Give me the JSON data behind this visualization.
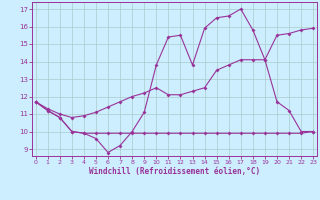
{
  "bg_color": "#cceeff",
  "line_color": "#993399",
  "grid_color": "#aacccc",
  "xlabel": "Windchill (Refroidissement éolien,°C)",
  "xlabel_color": "#993399",
  "xticks": [
    0,
    1,
    2,
    3,
    4,
    5,
    6,
    7,
    8,
    9,
    10,
    11,
    12,
    13,
    14,
    15,
    16,
    17,
    18,
    19,
    20,
    21,
    22,
    23
  ],
  "yticks": [
    9,
    10,
    11,
    12,
    13,
    14,
    15,
    16,
    17
  ],
  "xlim": [
    -0.3,
    23.3
  ],
  "ylim": [
    8.6,
    17.4
  ],
  "series1_x": [
    0,
    1,
    2,
    3,
    4,
    5,
    6,
    7,
    8,
    9,
    10,
    11,
    12,
    13,
    14,
    15,
    16,
    17,
    18,
    19,
    20,
    21,
    22,
    23
  ],
  "series1_y": [
    11.7,
    11.2,
    10.8,
    10.0,
    9.9,
    9.6,
    8.8,
    9.2,
    10.0,
    11.1,
    13.8,
    15.4,
    15.5,
    13.8,
    15.9,
    16.5,
    16.6,
    17.0,
    15.8,
    14.1,
    11.7,
    11.2,
    10.0,
    10.0
  ],
  "series2_x": [
    0,
    1,
    2,
    3,
    4,
    5,
    6,
    7,
    8,
    9,
    10,
    11,
    12,
    13,
    14,
    15,
    16,
    17,
    18,
    19,
    20,
    21,
    22,
    23
  ],
  "series2_y": [
    11.7,
    11.2,
    10.8,
    10.0,
    9.9,
    9.9,
    9.9,
    9.9,
    9.9,
    9.9,
    9.9,
    9.9,
    9.9,
    9.9,
    9.9,
    9.9,
    9.9,
    9.9,
    9.9,
    9.9,
    9.9,
    9.9,
    9.9,
    10.0
  ],
  "series3_x": [
    0,
    1,
    2,
    3,
    4,
    5,
    6,
    7,
    8,
    9,
    10,
    11,
    12,
    13,
    14,
    15,
    16,
    17,
    18,
    19,
    20,
    21,
    22,
    23
  ],
  "series3_y": [
    11.7,
    11.3,
    11.0,
    10.8,
    10.9,
    11.1,
    11.4,
    11.7,
    12.0,
    12.2,
    12.5,
    12.1,
    12.1,
    12.3,
    12.5,
    13.5,
    13.8,
    14.1,
    14.1,
    14.1,
    15.5,
    15.6,
    15.8,
    15.9
  ]
}
